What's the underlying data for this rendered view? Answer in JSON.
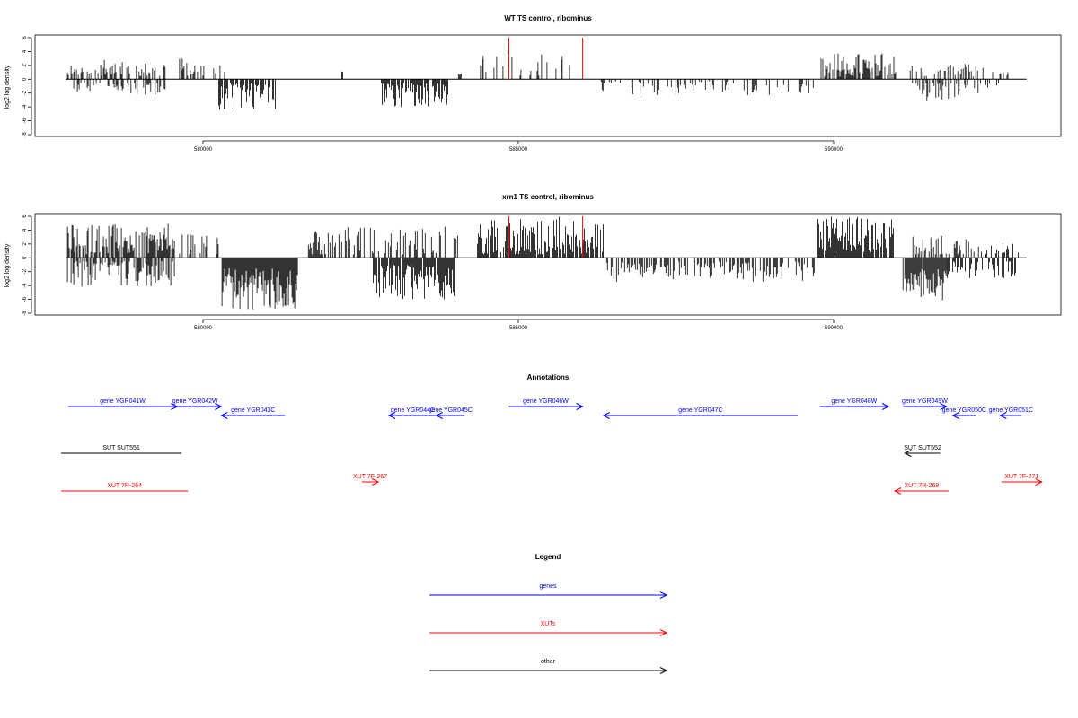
{
  "chart_data": [
    {
      "type": "bar",
      "title": "WT TS control, ribominus",
      "xlabel": "",
      "ylabel": "log2 log density",
      "xlim": [
        577800,
        593100
      ],
      "ylim": [
        -8,
        6
      ],
      "xticks": [
        580000,
        585000,
        590000
      ],
      "xtick_labels": [
        "580000",
        "585000",
        "590000"
      ],
      "yticks": [
        -8,
        -6,
        -4,
        -2,
        0,
        2,
        4,
        6
      ],
      "ytick_labels": [
        "-8",
        "-6",
        "-4",
        "-2",
        "0",
        "2",
        "4",
        "6"
      ],
      "markers": [
        {
          "x": 584850,
          "color": "#ff0000"
        },
        {
          "x": 586020,
          "color": "#ff0000"
        }
      ],
      "plus_segments": [
        {
          "start": 577850,
          "end": 578900,
          "min": 0.5,
          "max": 2.8,
          "density": 0.45
        },
        {
          "start": 578900,
          "end": 579400,
          "min": 0.4,
          "max": 2.5,
          "density": 0.5
        },
        {
          "start": 579600,
          "end": 580350,
          "min": 0.5,
          "max": 3.0,
          "density": 0.3
        },
        {
          "start": 582200,
          "end": 582220,
          "min": 1.0,
          "max": 1.2,
          "density": 1.0
        },
        {
          "start": 584050,
          "end": 584100,
          "min": 0.6,
          "max": 0.8,
          "density": 1.0
        },
        {
          "start": 584400,
          "end": 585950,
          "min": 0.5,
          "max": 3.6,
          "density": 0.25
        },
        {
          "start": 589800,
          "end": 591000,
          "min": 0.4,
          "max": 3.8,
          "density": 0.75
        },
        {
          "start": 591200,
          "end": 592400,
          "min": 0.4,
          "max": 2.2,
          "density": 0.4
        },
        {
          "start": 592450,
          "end": 592950,
          "min": 0.5,
          "max": 1.2,
          "density": 0.15
        }
      ],
      "minus_segments": [
        {
          "start": 577850,
          "end": 578800,
          "min": 0.5,
          "max": 1.8,
          "density": 0.4
        },
        {
          "start": 578800,
          "end": 579400,
          "min": 0.5,
          "max": 2.4,
          "density": 0.5
        },
        {
          "start": 580250,
          "end": 581150,
          "min": 0.5,
          "max": 4.5,
          "density": 0.7
        },
        {
          "start": 582800,
          "end": 583900,
          "min": 0.5,
          "max": 4.0,
          "density": 0.75
        },
        {
          "start": 586300,
          "end": 589700,
          "min": 0.3,
          "max": 2.3,
          "density": 0.3
        },
        {
          "start": 591250,
          "end": 592300,
          "min": 0.5,
          "max": 3.2,
          "density": 0.45
        },
        {
          "start": 592300,
          "end": 592950,
          "min": 0.5,
          "max": 1.5,
          "density": 0.2
        }
      ]
    },
    {
      "type": "bar",
      "title": "xrn1 TS control, ribominus",
      "xlabel": "",
      "ylabel": "log2 log density",
      "xlim": [
        577800,
        593100
      ],
      "ylim": [
        -8,
        6
      ],
      "xticks": [
        580000,
        585000,
        590000
      ],
      "xtick_labels": [
        "580000",
        "585000",
        "590000"
      ],
      "yticks": [
        -8,
        -6,
        -4,
        -2,
        0,
        2,
        4,
        6
      ],
      "ytick_labels": [
        "-8",
        "-6",
        "-4",
        "-2",
        "0",
        "2",
        "4",
        "6"
      ],
      "markers": [
        {
          "x": 584850,
          "color": "#ff0000"
        },
        {
          "x": 586020,
          "color": "#ff0000"
        }
      ],
      "plus_segments": [
        {
          "start": 577850,
          "end": 579550,
          "min": 0.5,
          "max": 5.0,
          "density": 0.75
        },
        {
          "start": 579600,
          "end": 580300,
          "min": 0.5,
          "max": 3.5,
          "density": 0.4
        },
        {
          "start": 581600,
          "end": 584050,
          "min": 0.5,
          "max": 4.5,
          "density": 0.45
        },
        {
          "start": 584350,
          "end": 586350,
          "min": 0.5,
          "max": 6.0,
          "density": 0.8
        },
        {
          "start": 589750,
          "end": 590950,
          "min": 0.8,
          "max": 6.0,
          "density": 0.85
        },
        {
          "start": 591200,
          "end": 592300,
          "min": 0.5,
          "max": 3.5,
          "density": 0.35
        },
        {
          "start": 592300,
          "end": 592950,
          "min": 0.5,
          "max": 2.2,
          "density": 0.3
        }
      ],
      "minus_segments": [
        {
          "start": 577850,
          "end": 579550,
          "min": 0.5,
          "max": 4.2,
          "density": 0.75
        },
        {
          "start": 580300,
          "end": 581500,
          "min": 1.5,
          "max": 7.5,
          "density": 0.95
        },
        {
          "start": 582700,
          "end": 584000,
          "min": 1.0,
          "max": 6.0,
          "density": 0.9
        },
        {
          "start": 586400,
          "end": 589700,
          "min": 0.5,
          "max": 3.5,
          "density": 0.55
        },
        {
          "start": 591100,
          "end": 591800,
          "min": 1.5,
          "max": 6.2,
          "density": 0.95
        },
        {
          "start": 591800,
          "end": 592900,
          "min": 0.5,
          "max": 3.0,
          "density": 0.5
        }
      ]
    },
    {
      "type": "other",
      "title": "Annotations",
      "features": [
        {
          "label": "gene YGR041W",
          "start": 577860,
          "end": 579590,
          "strand": "+",
          "row": 0,
          "color": "#0000ff"
        },
        {
          "label": "gene YGR042W",
          "start": 579460,
          "end": 580290,
          "strand": "+",
          "row": 0,
          "color": "#0000ff"
        },
        {
          "label": "gene YGR043C",
          "start": 580290,
          "end": 581300,
          "strand": "-",
          "row": 1,
          "color": "#0000ff"
        },
        {
          "label": "gene YGR044C",
          "start": 582950,
          "end": 583700,
          "strand": "-",
          "row": 1,
          "color": "#0000ff"
        },
        {
          "label": "gene YGR045C",
          "start": 583700,
          "end": 584140,
          "strand": "-",
          "row": 1,
          "color": "#0000ff"
        },
        {
          "label": "gene YGR046W",
          "start": 584850,
          "end": 586020,
          "strand": "+",
          "row": 0,
          "color": "#0000ff"
        },
        {
          "label": "gene YGR047C",
          "start": 586350,
          "end": 589430,
          "strand": "-",
          "row": 1,
          "color": "#0000ff"
        },
        {
          "label": "gene YGR048W",
          "start": 589780,
          "end": 590870,
          "strand": "+",
          "row": 0,
          "color": "#0000ff"
        },
        {
          "label": "gene YGR049W",
          "start": 591100,
          "end": 591790,
          "strand": "+",
          "row": 0,
          "color": "#0000ff"
        },
        {
          "label": "gene YGR050C",
          "start": 591890,
          "end": 592250,
          "strand": "-",
          "row": 1,
          "color": "#0000ff"
        },
        {
          "label": "gene YGR051C",
          "start": 592640,
          "end": 592980,
          "strand": "-",
          "row": 1,
          "color": "#0000ff"
        },
        {
          "label": "SUT SUT551",
          "start": 577750,
          "end": 579660,
          "strand": ".",
          "row": 2,
          "color": "#000000"
        },
        {
          "label": "SUT SUT552",
          "start": 591130,
          "end": 591690,
          "strand": "-",
          "row": 2,
          "color": "#000000"
        },
        {
          "label": "XUT 7R-264",
          "start": 577750,
          "end": 579760,
          "strand": ".",
          "row": 3,
          "color": "#ff0000"
        },
        {
          "label": "XUT 7F-267",
          "start": 582520,
          "end": 582780,
          "strand": "+",
          "row": 4,
          "color": "#ff0000"
        },
        {
          "label": "XUT 7R-269",
          "start": 590970,
          "end": 591820,
          "strand": "-",
          "row": 3,
          "color": "#ff0000"
        },
        {
          "label": "XUT 7F-271",
          "start": 592660,
          "end": 593300,
          "strand": "+",
          "row": 4,
          "color": "#ff0000"
        }
      ]
    },
    {
      "type": "other",
      "title": "Legend",
      "entries": [
        {
          "label": "genes",
          "color": "#0000ff"
        },
        {
          "label": "XUTs",
          "color": "#ff0000"
        },
        {
          "label": "other",
          "color": "#000000"
        }
      ]
    }
  ]
}
